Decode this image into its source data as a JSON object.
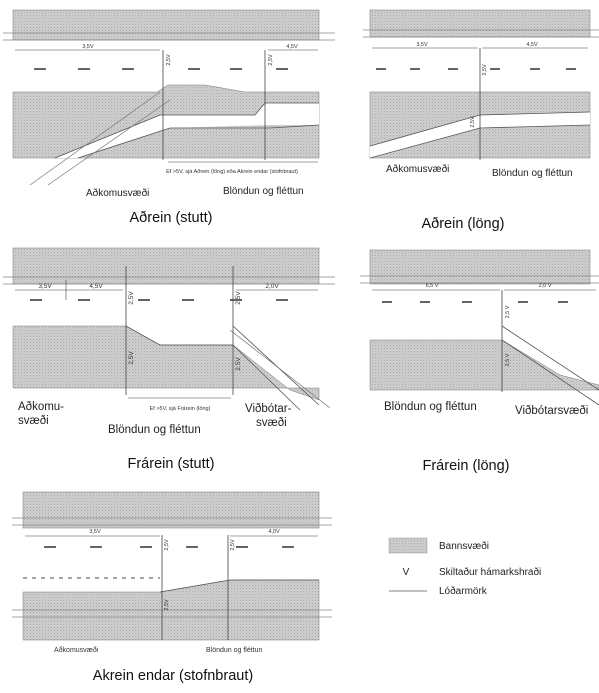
{
  "captions": {
    "adrein_stutt": "Aðrein (stutt)",
    "adrein_long": "Aðrein (löng)",
    "frarein_stutt": "Frárein (stutt)",
    "frarein_long": "Frárein (löng)",
    "akrein_endar": "Akrein endar (stofnbraut)"
  },
  "labels": {
    "adkomusvaedi": "Aðkomusvæði",
    "adkomu": "Aðkomu-",
    "svaedi": "svæði",
    "blondun": "Blöndun og fléttun",
    "vidbotarsvaedi": "Viðbótarsvæði",
    "vidbotar": "Viðbótar-",
    "note_adrein": "Ef >5V, sjá Aðrein (löng) eða Akrein endar (stofnbraut)",
    "note_frarein": "Ef >5V, sjá Frárein (löng)"
  },
  "dims": {
    "d35": "3,5V",
    "d45": "4,5V",
    "d25": "2,5V",
    "d20": "2,0V",
    "d20s": "2,0 V",
    "d65": "6,5 V",
    "d25s": "2,5 V",
    "d40": "4,0V"
  },
  "legend": {
    "bannsvaedi": "Bannsvæði",
    "v_symbol": "V",
    "v_text": "Skiltaður hámarkshraði",
    "lodarmork": "Lóðarmörk"
  }
}
